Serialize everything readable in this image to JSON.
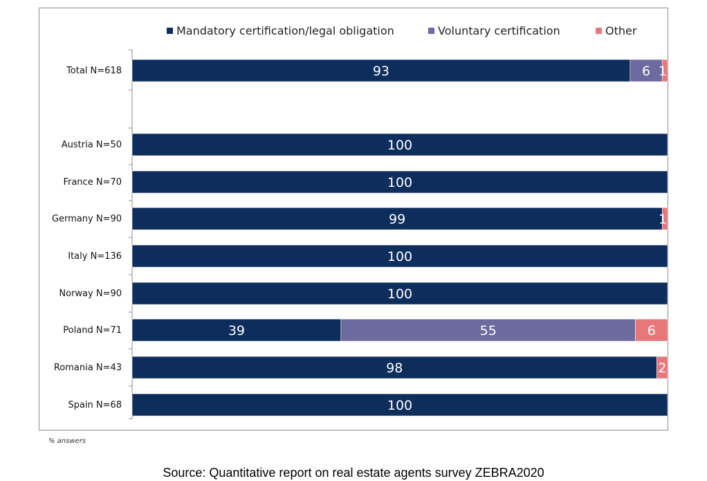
{
  "chart_data": {
    "type": "bar",
    "orientation": "horizontal",
    "stacked": true,
    "categories": [
      "Total N=618",
      "Austria N=50",
      "France N=70",
      "Germany N=90",
      "Italy N=136",
      "Norway N=90",
      "Poland N=71",
      "Romania N=43",
      "Spain N=68"
    ],
    "series": [
      {
        "name": "Mandatory certification/legal obligation",
        "color": "#0d2d5c",
        "values": [
          93,
          100,
          100,
          99,
          100,
          100,
          39,
          98,
          100
        ]
      },
      {
        "name": "Voluntary certification",
        "color": "#6c6a9e",
        "values": [
          6,
          0,
          0,
          0,
          0,
          0,
          55,
          0,
          0
        ]
      },
      {
        "name": "Other",
        "color": "#e8777a",
        "values": [
          1,
          0,
          0,
          1,
          0,
          0,
          6,
          2,
          0
        ]
      }
    ],
    "xlim": [
      0,
      100
    ],
    "legend_position": "top",
    "grid": false
  },
  "footnote": "% answers",
  "source": "Source: Quantitative report on real estate agents survey ZEBRA2020"
}
